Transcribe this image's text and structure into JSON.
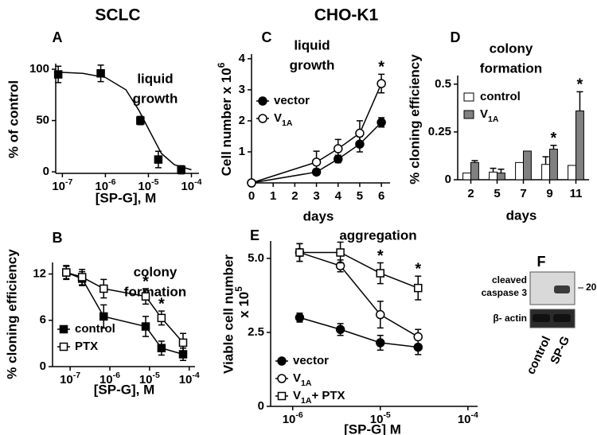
{
  "headers": [
    "SCLC",
    "CHO-K1"
  ],
  "panel_labels": [
    "A",
    "B",
    "C",
    "D",
    "E",
    "F"
  ],
  "chart_data": [
    {
      "type": "line",
      "title": [
        "liquid",
        "growth"
      ],
      "x_label": "[SP-G], M",
      "y_label": "% of control",
      "x_scale": "log",
      "xlim": [
        7e-08,
        0.00015
      ],
      "xticks": [
        {
          "value": 1e-07,
          "label": "10",
          "sup": "-7"
        },
        {
          "value": 1e-06,
          "label": "10",
          "sup": "-6"
        },
        {
          "value": 1e-05,
          "label": "10",
          "sup": "-5"
        },
        {
          "value": 0.0001,
          "label": "10",
          "sup": "-4"
        }
      ],
      "ylim": [
        -1.5,
        105.5
      ],
      "yticks": [
        0,
        50,
        100
      ],
      "series": [
        {
          "color": "#000000",
          "marker": "square",
          "filled": true,
          "connect": false,
          "x": [
            8e-08,
            7.8e-07,
            6.5e-06,
            1.7e-05,
            5.8e-05
          ],
          "values": [
            95,
            96,
            50,
            12,
            2
          ],
          "errors": [
            8,
            8,
            4,
            8,
            4
          ]
        }
      ],
      "fit": {
        "x": [
          7.5e-08,
          1e-07,
          3e-07,
          1e-06,
          3e-06,
          6e-06,
          1e-05,
          2e-05,
          4e-05,
          0.0001
        ],
        "values": [
          97,
          97,
          96,
          92,
          80,
          60,
          42,
          18,
          7,
          2
        ]
      }
    },
    {
      "type": "line",
      "title": [
        "colony",
        "formation"
      ],
      "x_label": "[SP-G], M",
      "y_label": "% cloning efficiency",
      "x_scale": "log",
      "xlim": [
        3.6e-08,
        0.00014
      ],
      "xticks": [
        {
          "value": 1e-07,
          "label": "10",
          "sup": "-7"
        },
        {
          "value": 1e-06,
          "label": "10",
          "sup": "-6"
        },
        {
          "value": 1e-05,
          "label": "10",
          "sup": "-5"
        },
        {
          "value": 0.0001,
          "label": "10",
          "sup": "-4"
        }
      ],
      "ylim": [
        0,
        13.5
      ],
      "yticks": [
        0,
        6,
        12
      ],
      "legend": "lower-left",
      "series": [
        {
          "name": "control",
          "color": "#000000",
          "marker": "square",
          "filled": true,
          "connect": true,
          "x": [
            8e-08,
            2e-07,
            7e-07,
            8e-06,
            2e-05,
            7e-05
          ],
          "values": [
            12.2,
            11.4,
            6.5,
            5.2,
            2.4,
            1.6
          ],
          "errors": [
            0.9,
            0.9,
            1.5,
            1.3,
            0.9,
            0.8
          ]
        },
        {
          "name": "PTX",
          "color": "#000000",
          "marker": "square",
          "filled": false,
          "connect": true,
          "x": [
            8e-08,
            2e-07,
            7e-07,
            8e-06,
            2e-05,
            7e-05
          ],
          "values": [
            12.2,
            11.6,
            10.1,
            9.1,
            6.3,
            3.1
          ],
          "errors": [
            0.8,
            1.0,
            1.2,
            1.0,
            0.9,
            1.2
          ],
          "significance": [
            null,
            null,
            null,
            "*",
            "*",
            null
          ]
        }
      ]
    },
    {
      "type": "line",
      "title": [
        "liquid",
        "growth"
      ],
      "x_label": "days",
      "y_label": [
        {
          "text": "Cell number x 10"
        },
        {
          "sup": "6"
        }
      ],
      "xlim": [
        0,
        6.4
      ],
      "xticks": [
        0,
        1,
        2,
        3,
        4,
        5,
        6
      ],
      "ylim": [
        0,
        4.15
      ],
      "yticks": [
        1,
        2,
        3,
        4
      ],
      "legend": "upper-left",
      "series": [
        {
          "name": "vector",
          "color": "#000000",
          "marker": "circle",
          "filled": true,
          "connect": true,
          "x": [
            0,
            3,
            4,
            5,
            6
          ],
          "values": [
            0,
            0.35,
            0.77,
            1.25,
            1.95
          ],
          "errors": [
            null,
            0.1,
            0.12,
            0.25,
            0.15
          ]
        },
        {
          "name": [
            {
              "text": "V"
            },
            {
              "sub": "1A"
            }
          ],
          "color": "#000000",
          "marker": "circle",
          "filled": false,
          "connect": true,
          "x": [
            0,
            3,
            4,
            5,
            6
          ],
          "values": [
            0,
            0.67,
            1.1,
            1.6,
            3.2
          ],
          "errors": [
            null,
            0.35,
            0.3,
            0.4,
            0.3
          ],
          "significance": [
            null,
            null,
            null,
            null,
            "*"
          ]
        }
      ]
    },
    {
      "type": "bar",
      "title": [
        "colony",
        "formation"
      ],
      "x_label": "days",
      "y_label": "% cloning efficiency",
      "categories": [
        "2",
        "5",
        "7",
        "9",
        "11"
      ],
      "ylim": [
        0,
        0.545
      ],
      "yticks": [
        0,
        0.25,
        0.5
      ],
      "legend": "upper-left",
      "series": [
        {
          "name": "control",
          "color": "#ffffff",
          "values": [
            0.035,
            0.04,
            0.09,
            0.08,
            0.075
          ],
          "errors": [
            null,
            0.02,
            null,
            0.04,
            null
          ]
        },
        {
          "name": [
            {
              "text": "V"
            },
            {
              "sub": "1A"
            }
          ],
          "color": "#808080",
          "values": [
            0.09,
            0.035,
            0.15,
            0.16,
            0.36
          ],
          "errors": [
            0.01,
            0.02,
            null,
            0.02,
            0.1
          ],
          "significance": [
            null,
            null,
            null,
            "*",
            "*"
          ]
        }
      ]
    },
    {
      "type": "line",
      "title": [
        "aggregation"
      ],
      "x_label": "[SP-G] M",
      "y_label": "Viable cell number",
      "y_label_2": [
        {
          "text": "x 10"
        },
        {
          "sup": "5"
        }
      ],
      "x_scale": "log",
      "xlim": [
        5.6e-07,
        0.000129
      ],
      "xticks": [
        {
          "value": 1e-06,
          "label": "10",
          "sup": "-6"
        },
        {
          "value": 1e-05,
          "label": "10",
          "sup": "-5"
        },
        {
          "value": 0.0001,
          "label": "10",
          "sup": "-4"
        }
      ],
      "ylim": [
        0,
        5.59
      ],
      "yticks": [
        0,
        2.5,
        {
          "value": 5,
          "label": "5.0"
        }
      ],
      "legend": "lower-left",
      "series": [
        {
          "name": "vector",
          "color": "#000000",
          "marker": "circle",
          "filled": true,
          "connect": true,
          "x": [
            1.2e-06,
            3.5e-06,
            1e-05,
            2.7e-05
          ],
          "values": [
            3.0,
            2.6,
            2.15,
            2.0
          ],
          "errors": [
            0.15,
            0.2,
            0.25,
            0.25
          ]
        },
        {
          "name": [
            {
              "text": "V"
            },
            {
              "sub": "1A"
            }
          ],
          "color": "#000000",
          "marker": "circle",
          "filled": false,
          "connect": true,
          "x": [
            1.2e-06,
            3.5e-06,
            1e-05,
            2.7e-05
          ],
          "values": [
            5.2,
            4.75,
            3.1,
            2.35
          ],
          "errors": [
            0.3,
            0.2,
            0.45,
            0.25
          ]
        },
        {
          "name": [
            {
              "text": "V"
            },
            {
              "sub": "1A"
            },
            {
              "text": "+ PTX"
            }
          ],
          "color": "#000000",
          "marker": "square",
          "filled": false,
          "connect": true,
          "x": [
            1.2e-06,
            3.5e-06,
            1e-05,
            2.7e-05
          ],
          "values": [
            5.2,
            5.2,
            4.5,
            4.0
          ],
          "errors": [
            0.3,
            0.35,
            0.35,
            0.4
          ],
          "significance": [
            null,
            null,
            "*",
            "*"
          ]
        }
      ]
    }
  ],
  "blot": {
    "target": [
      "cleaved",
      "caspase 3"
    ],
    "size_marker": "20",
    "loading_control": "β- actin",
    "lanes": [
      "control",
      "SP-G"
    ]
  }
}
